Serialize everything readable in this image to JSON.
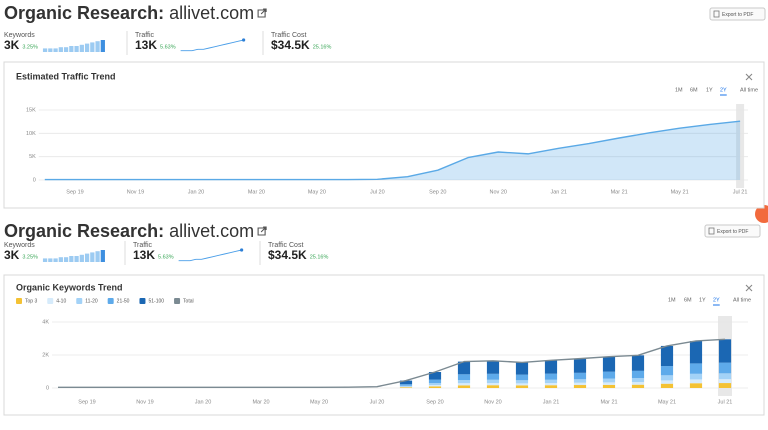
{
  "panels": [
    {
      "header": {
        "title": "Organic Research:",
        "domain": "allivet.com",
        "export": "Export to PDF"
      },
      "metrics": [
        {
          "label": "Keywords",
          "value": "3K",
          "change": "3.25%",
          "sparkline": {
            "type": "bar",
            "values": [
              3,
              3,
              3,
              4,
              4,
              5,
              5,
              6,
              7,
              8,
              9,
              10
            ]
          }
        },
        {
          "label": "Traffic",
          "value": "13K",
          "change": "5.63%",
          "sparkline": {
            "type": "line",
            "values": [
              1,
              1,
              1,
              2,
              2,
              3,
              4,
              5,
              6,
              7,
              8,
              9
            ]
          }
        },
        {
          "label": "Traffic Cost",
          "value": "$34.5K",
          "change": "25.16%"
        }
      ],
      "card": {
        "range_buttons": [
          "1M",
          "6M",
          "1Y",
          "2Y",
          "All time"
        ],
        "active_range_index": 3,
        "chart_data": {
          "type": "area",
          "title": "Estimated Traffic Trend",
          "color": "#5aa9e6",
          "categories": [
            null,
            "Sep 19",
            null,
            "Nov 19",
            null,
            "Jan 20",
            null,
            "Mar 20",
            null,
            "May 20",
            null,
            "Jul 20",
            null,
            "Sep 20",
            null,
            "Nov 20",
            null,
            "Jan 21",
            null,
            "Mar 21",
            null,
            "May 21",
            null,
            "Jul 21"
          ],
          "values": [
            100,
            100,
            100,
            100,
            100,
            100,
            100,
            100,
            100,
            100,
            100,
            150,
            700,
            2100,
            4800,
            6000,
            5600,
            6800,
            7800,
            9000,
            10100,
            11100,
            11900,
            12600
          ],
          "ylim": [
            0,
            15000
          ],
          "yticks": [
            0,
            {
              "value": 5000,
              "label": "5K"
            },
            {
              "value": 10000,
              "label": "10K"
            },
            {
              "value": 15000,
              "label": "15K"
            }
          ],
          "grid": true
        }
      }
    },
    {
      "header": {
        "title": "Organic Research:",
        "domain": "allivet.com",
        "export": "Export to PDF"
      },
      "metrics": [
        {
          "label": "Keywords",
          "value": "3K",
          "change": "3.25%",
          "sparkline": {
            "type": "bar",
            "values": [
              3,
              3,
              3,
              4,
              4,
              5,
              5,
              6,
              7,
              8,
              9,
              10
            ]
          }
        },
        {
          "label": "Traffic",
          "value": "13K",
          "change": "5.63%",
          "sparkline": {
            "type": "line",
            "values": [
              1,
              1,
              1,
              2,
              2,
              3,
              4,
              5,
              6,
              7,
              8,
              9
            ]
          }
        },
        {
          "label": "Traffic Cost",
          "value": "$34.5K",
          "change": "25.16%"
        }
      ],
      "card": {
        "range_buttons": [
          "1M",
          "6M",
          "1Y",
          "2Y",
          "All time"
        ],
        "active_range_index": 3,
        "chart_data": {
          "type": "bar",
          "title": "Organic Keywords Trend",
          "stacked": true,
          "categories": [
            null,
            "Sep 19",
            null,
            "Nov 19",
            null,
            "Jan 20",
            null,
            "Mar 20",
            null,
            "May 20",
            null,
            "Jul 20",
            null,
            "Sep 20",
            null,
            "Nov 20",
            null,
            "Jan 21",
            null,
            "Mar 21",
            null,
            "May 21",
            null,
            "Jul 21"
          ],
          "series": [
            {
              "name": "Top 3",
              "color": "#f4c234",
              "values": [
                null,
                null,
                null,
                null,
                null,
                null,
                null,
                null,
                null,
                null,
                null,
                null,
                45,
                100,
                160,
                170,
                160,
                170,
                180,
                190,
                200,
                260,
                290,
                300
              ]
            },
            {
              "name": "4-10",
              "color": "#d6ebfb",
              "values": [
                null,
                null,
                null,
                null,
                null,
                null,
                null,
                null,
                null,
                null,
                null,
                null,
                35,
                80,
                130,
                130,
                120,
                130,
                140,
                150,
                160,
                200,
                230,
                240
              ]
            },
            {
              "name": "11-20",
              "color": "#a3d2f7",
              "values": [
                null,
                null,
                null,
                null,
                null,
                null,
                null,
                null,
                null,
                null,
                null,
                null,
                55,
                120,
                190,
                200,
                190,
                200,
                210,
                230,
                240,
                310,
                340,
                350
              ]
            },
            {
              "name": "21-50",
              "color": "#5eaaea",
              "values": [
                null,
                null,
                null,
                null,
                null,
                null,
                null,
                null,
                null,
                null,
                null,
                null,
                100,
                210,
                350,
                360,
                340,
                370,
                390,
                420,
                440,
                560,
                630,
                650
              ]
            },
            {
              "name": "51-100",
              "color": "#1b67b3",
              "values": [
                null,
                null,
                null,
                null,
                null,
                null,
                null,
                null,
                null,
                null,
                null,
                null,
                215,
                460,
                770,
                790,
                740,
                810,
                860,
                910,
                940,
                1220,
                1360,
                1410
              ]
            },
            {
              "name": "Total",
              "color": "#7b8a92",
              "type": "line",
              "values": [
                40,
                40,
                40,
                40,
                40,
                40,
                40,
                40,
                40,
                40,
                50,
                80,
                450,
                970,
                1600,
                1650,
                1550,
                1680,
                1780,
                1900,
                1980,
                2550,
                2850,
                2950
              ]
            }
          ],
          "ylim": [
            0,
            4000
          ],
          "yticks": [
            0,
            {
              "value": 2000,
              "label": "2K"
            },
            {
              "value": 4000,
              "label": "4K"
            }
          ],
          "grid": true
        }
      }
    }
  ]
}
